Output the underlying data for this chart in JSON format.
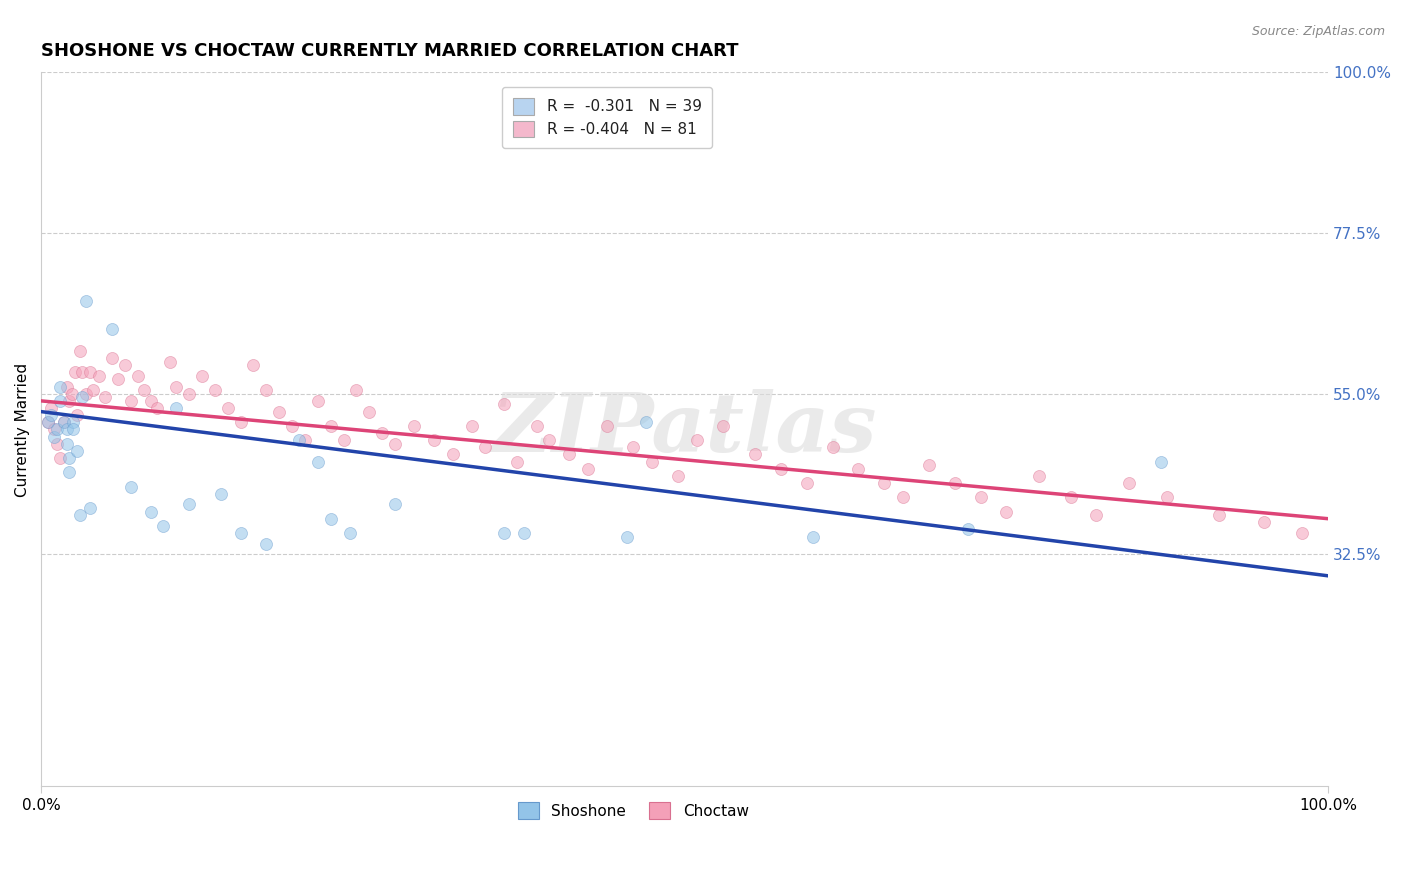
{
  "title": "SHOSHONE VS CHOCTAW CURRENTLY MARRIED CORRELATION CHART",
  "source": "Source: ZipAtlas.com",
  "ylabel": "Currently Married",
  "xlim": [
    0.0,
    1.0
  ],
  "ylim": [
    0.0,
    1.0
  ],
  "ytick_labels_right": [
    "100.0%",
    "77.5%",
    "55.0%",
    "32.5%"
  ],
  "ytick_positions_right": [
    1.0,
    0.775,
    0.55,
    0.325
  ],
  "grid_color": "#cccccc",
  "background_color": "#ffffff",
  "shoshone_color": "#93c4e8",
  "shoshone_edge": "#6699cc",
  "choctaw_color": "#f4a0b8",
  "choctaw_edge": "#d97090",
  "shoshone_line_color": "#2244aa",
  "choctaw_line_color": "#dd4477",
  "legend_label_shoshone": "R =  -0.301   N = 39",
  "legend_label_choctaw": "R = -0.404   N = 81",
  "legend_shoshone_box": "#b8d4f0",
  "legend_choctaw_box": "#f4b8cc",
  "watermark": "ZIPatlas",
  "shoshone_x": [
    0.005,
    0.008,
    0.01,
    0.012,
    0.015,
    0.015,
    0.018,
    0.02,
    0.02,
    0.022,
    0.022,
    0.025,
    0.025,
    0.028,
    0.03,
    0.032,
    0.035,
    0.038,
    0.055,
    0.07,
    0.085,
    0.095,
    0.105,
    0.115,
    0.14,
    0.155,
    0.175,
    0.2,
    0.215,
    0.225,
    0.24,
    0.275,
    0.36,
    0.375,
    0.455,
    0.47,
    0.6,
    0.72,
    0.87
  ],
  "shoshone_y": [
    0.51,
    0.52,
    0.49,
    0.5,
    0.54,
    0.56,
    0.51,
    0.5,
    0.48,
    0.46,
    0.44,
    0.51,
    0.5,
    0.47,
    0.38,
    0.545,
    0.68,
    0.39,
    0.64,
    0.42,
    0.385,
    0.365,
    0.53,
    0.395,
    0.41,
    0.355,
    0.34,
    0.485,
    0.455,
    0.375,
    0.355,
    0.395,
    0.355,
    0.355,
    0.35,
    0.51,
    0.35,
    0.36,
    0.455
  ],
  "choctaw_x": [
    0.005,
    0.008,
    0.01,
    0.012,
    0.015,
    0.018,
    0.02,
    0.022,
    0.024,
    0.026,
    0.028,
    0.03,
    0.032,
    0.035,
    0.038,
    0.04,
    0.045,
    0.05,
    0.055,
    0.06,
    0.065,
    0.07,
    0.075,
    0.08,
    0.085,
    0.09,
    0.1,
    0.105,
    0.115,
    0.125,
    0.135,
    0.145,
    0.155,
    0.165,
    0.175,
    0.185,
    0.195,
    0.205,
    0.215,
    0.225,
    0.235,
    0.245,
    0.255,
    0.265,
    0.275,
    0.29,
    0.305,
    0.32,
    0.335,
    0.345,
    0.36,
    0.37,
    0.385,
    0.395,
    0.41,
    0.425,
    0.44,
    0.46,
    0.475,
    0.495,
    0.51,
    0.53,
    0.555,
    0.575,
    0.595,
    0.615,
    0.635,
    0.655,
    0.67,
    0.69,
    0.71,
    0.73,
    0.75,
    0.775,
    0.8,
    0.82,
    0.845,
    0.875,
    0.915,
    0.95,
    0.98
  ],
  "choctaw_y": [
    0.51,
    0.53,
    0.5,
    0.48,
    0.46,
    0.51,
    0.56,
    0.54,
    0.55,
    0.58,
    0.52,
    0.61,
    0.58,
    0.55,
    0.58,
    0.555,
    0.575,
    0.545,
    0.6,
    0.57,
    0.59,
    0.54,
    0.575,
    0.555,
    0.54,
    0.53,
    0.595,
    0.56,
    0.55,
    0.575,
    0.555,
    0.53,
    0.51,
    0.59,
    0.555,
    0.525,
    0.505,
    0.485,
    0.54,
    0.505,
    0.485,
    0.555,
    0.525,
    0.495,
    0.48,
    0.505,
    0.485,
    0.465,
    0.505,
    0.475,
    0.535,
    0.455,
    0.505,
    0.485,
    0.465,
    0.445,
    0.505,
    0.475,
    0.455,
    0.435,
    0.485,
    0.505,
    0.465,
    0.445,
    0.425,
    0.475,
    0.445,
    0.425,
    0.405,
    0.45,
    0.425,
    0.405,
    0.385,
    0.435,
    0.405,
    0.38,
    0.425,
    0.405,
    0.38,
    0.37,
    0.355
  ],
  "shoshone_trend_x": [
    0.0,
    1.0
  ],
  "shoshone_trend_y": [
    0.525,
    0.295
  ],
  "choctaw_trend_x": [
    0.0,
    1.0
  ],
  "choctaw_trend_y": [
    0.54,
    0.375
  ],
  "title_fontsize": 13,
  "axis_label_fontsize": 11,
  "tick_fontsize": 11,
  "legend_fontsize": 11,
  "marker_size": 75,
  "marker_alpha": 0.55
}
